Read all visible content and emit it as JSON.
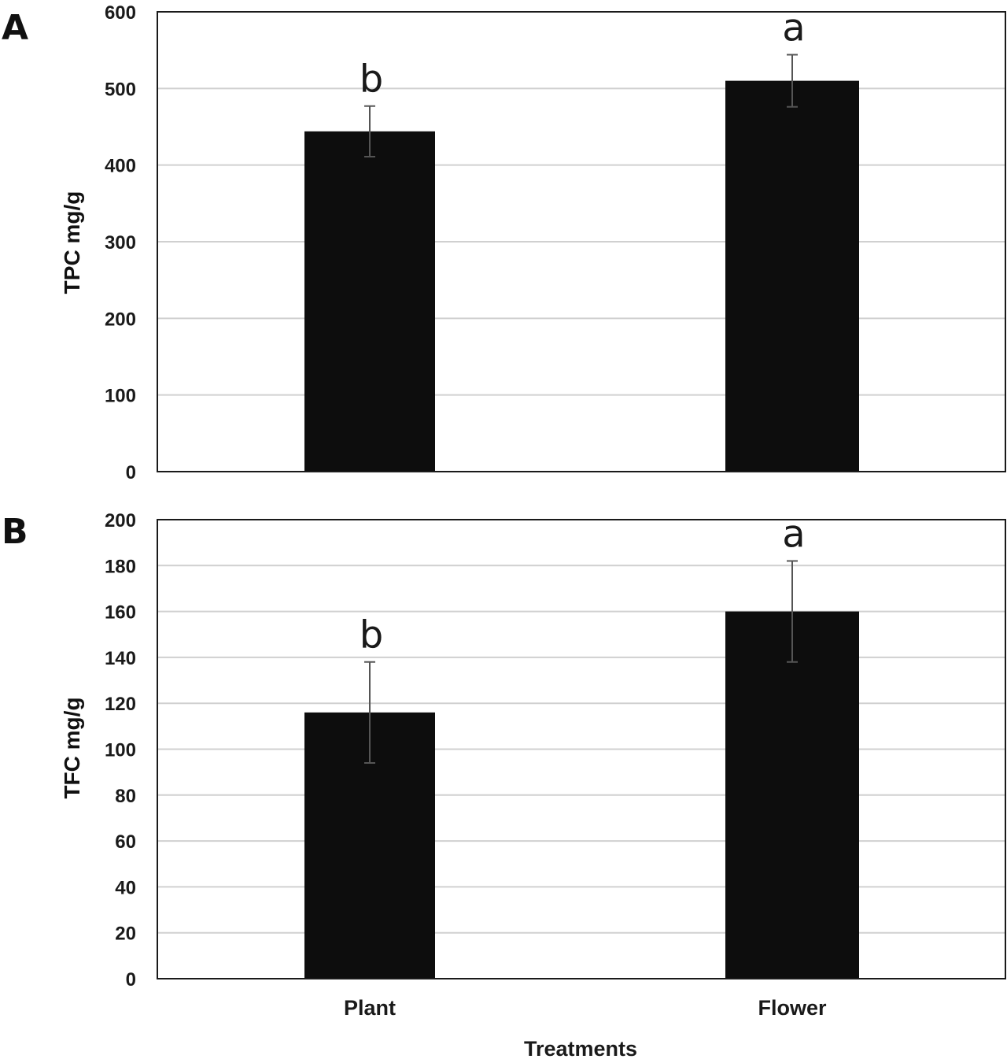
{
  "figure": {
    "x_axis_title": "Treatments",
    "categories": [
      "Plant",
      "Flower"
    ]
  },
  "colors": {
    "bar": "#0d0d0d",
    "gridline": "#d0d0d0",
    "error_bar": "#555555",
    "frame": "#1a1a1a"
  },
  "chart_data": [
    {
      "type": "bar",
      "panel_label": "A",
      "title": "",
      "xlabel": "",
      "ylabel": "TPC mg/g",
      "ylim": [
        0,
        600
      ],
      "yticks": [
        0,
        100,
        200,
        300,
        400,
        500,
        600
      ],
      "grid": true,
      "categories": [
        "Plant",
        "Flower"
      ],
      "values": [
        444,
        510
      ],
      "errors": [
        33,
        34
      ],
      "annotations": [
        "b",
        "a"
      ]
    },
    {
      "type": "bar",
      "panel_label": "B",
      "title": "",
      "xlabel": "Treatments",
      "ylabel": "TFC mg/g",
      "ylim": [
        0,
        200
      ],
      "yticks": [
        0,
        20,
        40,
        60,
        80,
        100,
        120,
        140,
        160,
        180,
        200
      ],
      "grid": true,
      "categories": [
        "Plant",
        "Flower"
      ],
      "values": [
        116,
        160
      ],
      "errors": [
        22,
        22
      ],
      "annotations": [
        "b",
        "a"
      ]
    }
  ]
}
